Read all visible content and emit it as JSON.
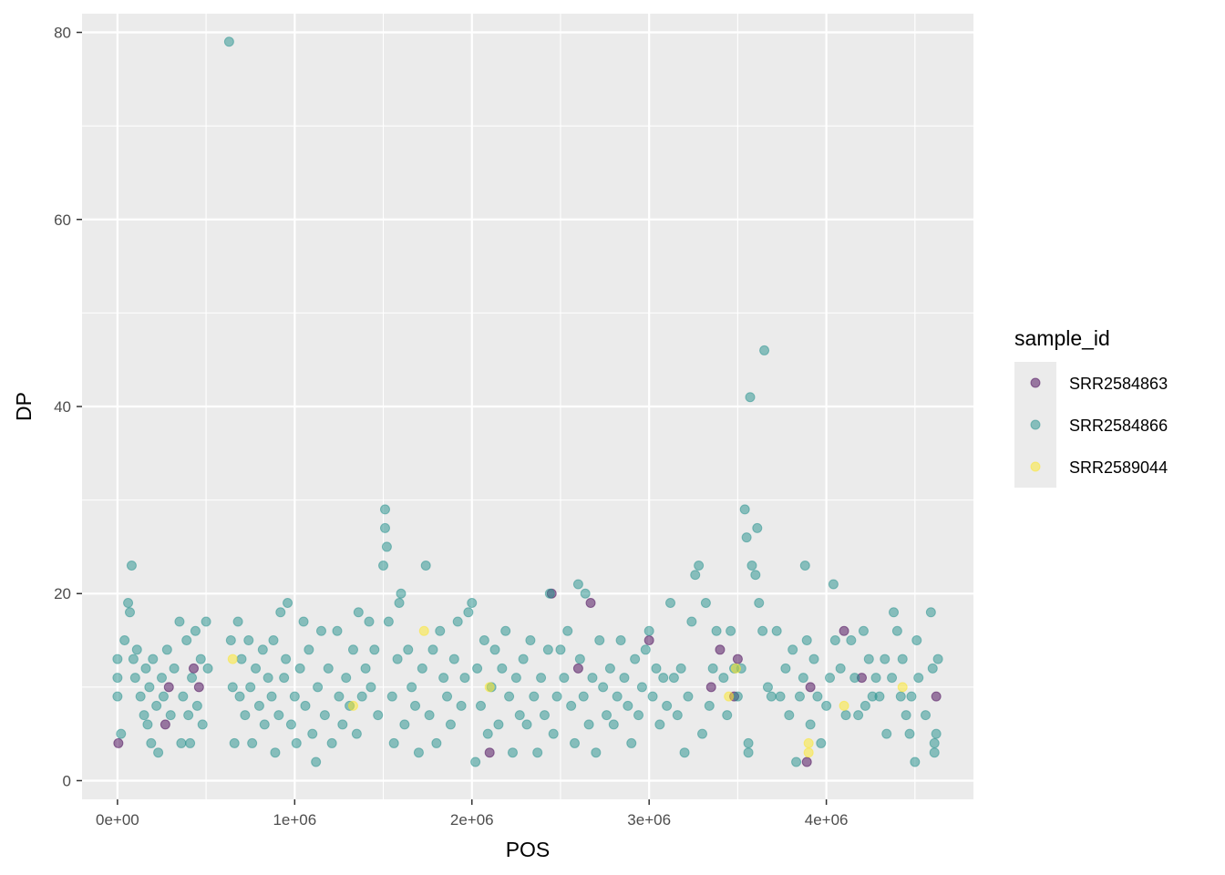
{
  "chart_data": {
    "type": "scatter",
    "title": "",
    "xlabel": "POS",
    "ylabel": "DP",
    "xlim": [
      -200000,
      4830000
    ],
    "ylim": [
      -2,
      82
    ],
    "x_ticks": [
      0,
      1000000,
      2000000,
      3000000,
      4000000
    ],
    "x_tick_labels": [
      "0e+00",
      "1e+06",
      "2e+06",
      "3e+06",
      "4e+06"
    ],
    "y_ticks": [
      0,
      20,
      40,
      60,
      80
    ],
    "y_tick_labels": [
      "0",
      "20",
      "40",
      "60",
      "80"
    ],
    "grid": true,
    "legend": {
      "title": "sample_id",
      "placement": "right"
    },
    "series": [
      {
        "name": "SRR2584863",
        "color": "#440154",
        "points": [
          [
            5000,
            4
          ],
          [
            270000,
            6
          ],
          [
            290000,
            10
          ],
          [
            430000,
            12
          ],
          [
            460000,
            10
          ],
          [
            2100000,
            3
          ],
          [
            2450000,
            20
          ],
          [
            2600000,
            12
          ],
          [
            2670000,
            19
          ],
          [
            3000000,
            15
          ],
          [
            3350000,
            10
          ],
          [
            3400000,
            14
          ],
          [
            3480000,
            9
          ],
          [
            3500000,
            13
          ],
          [
            3890000,
            2
          ],
          [
            3910000,
            10
          ],
          [
            4100000,
            16
          ],
          [
            4200000,
            11
          ],
          [
            4620000,
            9
          ]
        ]
      },
      {
        "name": "SRR2584866",
        "color": "#21908C",
        "points": [
          [
            0,
            9
          ],
          [
            0,
            11
          ],
          [
            0,
            13
          ],
          [
            20000,
            5
          ],
          [
            40000,
            15
          ],
          [
            60000,
            19
          ],
          [
            70000,
            18
          ],
          [
            80000,
            23
          ],
          [
            90000,
            13
          ],
          [
            100000,
            11
          ],
          [
            110000,
            14
          ],
          [
            130000,
            9
          ],
          [
            150000,
            7
          ],
          [
            160000,
            12
          ],
          [
            170000,
            6
          ],
          [
            180000,
            10
          ],
          [
            190000,
            4
          ],
          [
            200000,
            13
          ],
          [
            220000,
            8
          ],
          [
            230000,
            3
          ],
          [
            250000,
            11
          ],
          [
            260000,
            9
          ],
          [
            280000,
            14
          ],
          [
            300000,
            7
          ],
          [
            320000,
            12
          ],
          [
            350000,
            17
          ],
          [
            360000,
            4
          ],
          [
            370000,
            9
          ],
          [
            390000,
            15
          ],
          [
            400000,
            7
          ],
          [
            410000,
            4
          ],
          [
            420000,
            11
          ],
          [
            440000,
            16
          ],
          [
            450000,
            8
          ],
          [
            470000,
            13
          ],
          [
            480000,
            6
          ],
          [
            500000,
            17
          ],
          [
            510000,
            12
          ],
          [
            630000,
            79
          ],
          [
            640000,
            15
          ],
          [
            650000,
            10
          ],
          [
            660000,
            4
          ],
          [
            680000,
            17
          ],
          [
            690000,
            9
          ],
          [
            700000,
            13
          ],
          [
            720000,
            7
          ],
          [
            740000,
            15
          ],
          [
            750000,
            10
          ],
          [
            760000,
            4
          ],
          [
            780000,
            12
          ],
          [
            800000,
            8
          ],
          [
            820000,
            14
          ],
          [
            830000,
            6
          ],
          [
            850000,
            11
          ],
          [
            870000,
            9
          ],
          [
            880000,
            15
          ],
          [
            890000,
            3
          ],
          [
            910000,
            7
          ],
          [
            920000,
            18
          ],
          [
            940000,
            11
          ],
          [
            950000,
            13
          ],
          [
            960000,
            19
          ],
          [
            980000,
            6
          ],
          [
            1000000,
            9
          ],
          [
            1010000,
            4
          ],
          [
            1030000,
            12
          ],
          [
            1050000,
            17
          ],
          [
            1060000,
            8
          ],
          [
            1080000,
            14
          ],
          [
            1100000,
            5
          ],
          [
            1120000,
            2
          ],
          [
            1130000,
            10
          ],
          [
            1150000,
            16
          ],
          [
            1170000,
            7
          ],
          [
            1190000,
            12
          ],
          [
            1210000,
            4
          ],
          [
            1240000,
            16
          ],
          [
            1250000,
            9
          ],
          [
            1270000,
            6
          ],
          [
            1290000,
            11
          ],
          [
            1310000,
            8
          ],
          [
            1330000,
            14
          ],
          [
            1350000,
            5
          ],
          [
            1360000,
            18
          ],
          [
            1380000,
            9
          ],
          [
            1400000,
            12
          ],
          [
            1420000,
            17
          ],
          [
            1430000,
            10
          ],
          [
            1450000,
            14
          ],
          [
            1470000,
            7
          ],
          [
            1500000,
            23
          ],
          [
            1510000,
            29
          ],
          [
            1510000,
            27
          ],
          [
            1520000,
            25
          ],
          [
            1530000,
            17
          ],
          [
            1550000,
            9
          ],
          [
            1560000,
            4
          ],
          [
            1580000,
            13
          ],
          [
            1590000,
            19
          ],
          [
            1600000,
            20
          ],
          [
            1620000,
            6
          ],
          [
            1640000,
            14
          ],
          [
            1660000,
            10
          ],
          [
            1680000,
            8
          ],
          [
            1700000,
            3
          ],
          [
            1720000,
            12
          ],
          [
            1740000,
            23
          ],
          [
            1760000,
            7
          ],
          [
            1780000,
            14
          ],
          [
            1800000,
            4
          ],
          [
            1820000,
            16
          ],
          [
            1840000,
            11
          ],
          [
            1860000,
            9
          ],
          [
            1880000,
            6
          ],
          [
            1900000,
            13
          ],
          [
            1920000,
            17
          ],
          [
            1940000,
            8
          ],
          [
            1960000,
            11
          ],
          [
            1980000,
            18
          ],
          [
            2000000,
            19
          ],
          [
            2020000,
            2
          ],
          [
            2030000,
            12
          ],
          [
            2050000,
            8
          ],
          [
            2070000,
            15
          ],
          [
            2090000,
            5
          ],
          [
            2110000,
            10
          ],
          [
            2130000,
            14
          ],
          [
            2150000,
            6
          ],
          [
            2170000,
            12
          ],
          [
            2190000,
            16
          ],
          [
            2210000,
            9
          ],
          [
            2230000,
            3
          ],
          [
            2250000,
            11
          ],
          [
            2270000,
            7
          ],
          [
            2290000,
            13
          ],
          [
            2310000,
            6
          ],
          [
            2330000,
            15
          ],
          [
            2350000,
            9
          ],
          [
            2370000,
            3
          ],
          [
            2390000,
            11
          ],
          [
            2410000,
            7
          ],
          [
            2430000,
            14
          ],
          [
            2440000,
            20
          ],
          [
            2460000,
            5
          ],
          [
            2480000,
            9
          ],
          [
            2500000,
            14
          ],
          [
            2520000,
            11
          ],
          [
            2540000,
            16
          ],
          [
            2560000,
            8
          ],
          [
            2580000,
            4
          ],
          [
            2600000,
            21
          ],
          [
            2610000,
            13
          ],
          [
            2630000,
            9
          ],
          [
            2640000,
            20
          ],
          [
            2660000,
            6
          ],
          [
            2680000,
            11
          ],
          [
            2700000,
            3
          ],
          [
            2720000,
            15
          ],
          [
            2740000,
            10
          ],
          [
            2760000,
            7
          ],
          [
            2780000,
            12
          ],
          [
            2800000,
            6
          ],
          [
            2820000,
            9
          ],
          [
            2840000,
            15
          ],
          [
            2860000,
            11
          ],
          [
            2880000,
            8
          ],
          [
            2900000,
            4
          ],
          [
            2920000,
            13
          ],
          [
            2940000,
            7
          ],
          [
            2960000,
            10
          ],
          [
            2980000,
            14
          ],
          [
            3000000,
            16
          ],
          [
            3020000,
            9
          ],
          [
            3040000,
            12
          ],
          [
            3060000,
            6
          ],
          [
            3080000,
            11
          ],
          [
            3100000,
            8
          ],
          [
            3120000,
            19
          ],
          [
            3140000,
            11
          ],
          [
            3160000,
            7
          ],
          [
            3180000,
            12
          ],
          [
            3200000,
            3
          ],
          [
            3220000,
            9
          ],
          [
            3240000,
            17
          ],
          [
            3260000,
            22
          ],
          [
            3280000,
            23
          ],
          [
            3300000,
            5
          ],
          [
            3320000,
            19
          ],
          [
            3340000,
            8
          ],
          [
            3360000,
            12
          ],
          [
            3380000,
            16
          ],
          [
            3420000,
            11
          ],
          [
            3440000,
            7
          ],
          [
            3460000,
            16
          ],
          [
            3480000,
            12
          ],
          [
            3500000,
            9
          ],
          [
            3520000,
            12
          ],
          [
            3540000,
            29
          ],
          [
            3550000,
            26
          ],
          [
            3560000,
            3
          ],
          [
            3560000,
            4
          ],
          [
            3570000,
            41
          ],
          [
            3580000,
            23
          ],
          [
            3600000,
            22
          ],
          [
            3610000,
            27
          ],
          [
            3620000,
            19
          ],
          [
            3640000,
            16
          ],
          [
            3650000,
            46
          ],
          [
            3670000,
            10
          ],
          [
            3690000,
            9
          ],
          [
            3720000,
            16
          ],
          [
            3740000,
            9
          ],
          [
            3770000,
            12
          ],
          [
            3790000,
            7
          ],
          [
            3810000,
            14
          ],
          [
            3830000,
            2
          ],
          [
            3850000,
            9
          ],
          [
            3870000,
            11
          ],
          [
            3880000,
            23
          ],
          [
            3890000,
            15
          ],
          [
            3910000,
            6
          ],
          [
            3930000,
            13
          ],
          [
            3950000,
            9
          ],
          [
            3970000,
            4
          ],
          [
            4000000,
            8
          ],
          [
            4020000,
            11
          ],
          [
            4040000,
            21
          ],
          [
            4050000,
            15
          ],
          [
            4080000,
            12
          ],
          [
            4110000,
            7
          ],
          [
            4140000,
            15
          ],
          [
            4160000,
            11
          ],
          [
            4180000,
            7
          ],
          [
            4210000,
            16
          ],
          [
            4220000,
            8
          ],
          [
            4240000,
            13
          ],
          [
            4260000,
            9
          ],
          [
            4280000,
            11
          ],
          [
            4300000,
            9
          ],
          [
            4330000,
            13
          ],
          [
            4340000,
            5
          ],
          [
            4370000,
            11
          ],
          [
            4380000,
            18
          ],
          [
            4400000,
            16
          ],
          [
            4420000,
            9
          ],
          [
            4430000,
            13
          ],
          [
            4450000,
            7
          ],
          [
            4470000,
            5
          ],
          [
            4480000,
            9
          ],
          [
            4500000,
            2
          ],
          [
            4510000,
            15
          ],
          [
            4520000,
            11
          ],
          [
            4560000,
            7
          ],
          [
            4590000,
            18
          ],
          [
            4600000,
            12
          ],
          [
            4610000,
            4
          ],
          [
            4610000,
            3
          ],
          [
            4620000,
            5
          ],
          [
            4630000,
            13
          ]
        ]
      },
      {
        "name": "SRR2589044",
        "color": "#FDE725",
        "points": [
          [
            650000,
            13
          ],
          [
            1330000,
            8
          ],
          [
            1730000,
            16
          ],
          [
            2100000,
            10
          ],
          [
            3450000,
            9
          ],
          [
            3490000,
            12
          ],
          [
            3900000,
            4
          ],
          [
            3900000,
            3
          ],
          [
            4100000,
            8
          ],
          [
            4430000,
            10
          ]
        ]
      }
    ]
  }
}
